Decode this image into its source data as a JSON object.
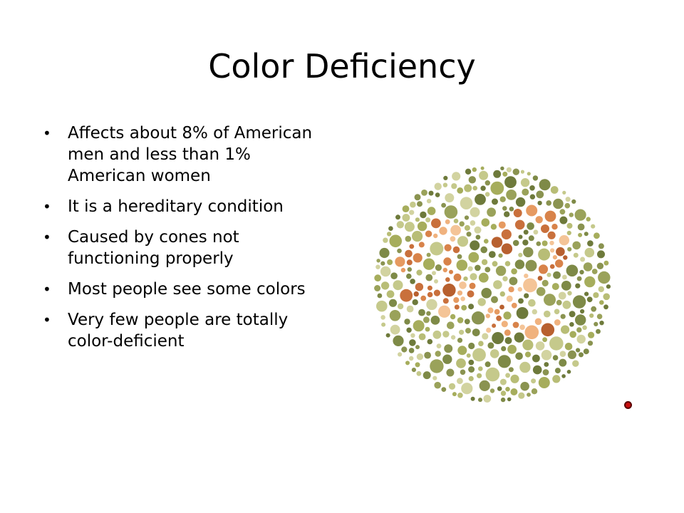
{
  "slide": {
    "title": "Color Deficiency",
    "bullets": [
      "Affects about 8% of American men and less than 1% American women",
      "It is a hereditary condition",
      "Caused by cones not functioning properly",
      "Most people see some colors",
      "Very few people are totally color-deficient"
    ]
  },
  "plate": {
    "background_colors": [
      "#7e8a47",
      "#a6ad5c",
      "#c5c98b",
      "#8a9350",
      "#b8bd76",
      "#6e7a3b",
      "#d2d3a0",
      "#9aa25a"
    ],
    "figure_colors": [
      "#d8834a",
      "#c9703c",
      "#f0b27e",
      "#e69a61",
      "#b8602f",
      "#f4c497"
    ]
  },
  "colors": {
    "background": "#ffffff",
    "text": "#000000",
    "marker": "#c91010"
  }
}
